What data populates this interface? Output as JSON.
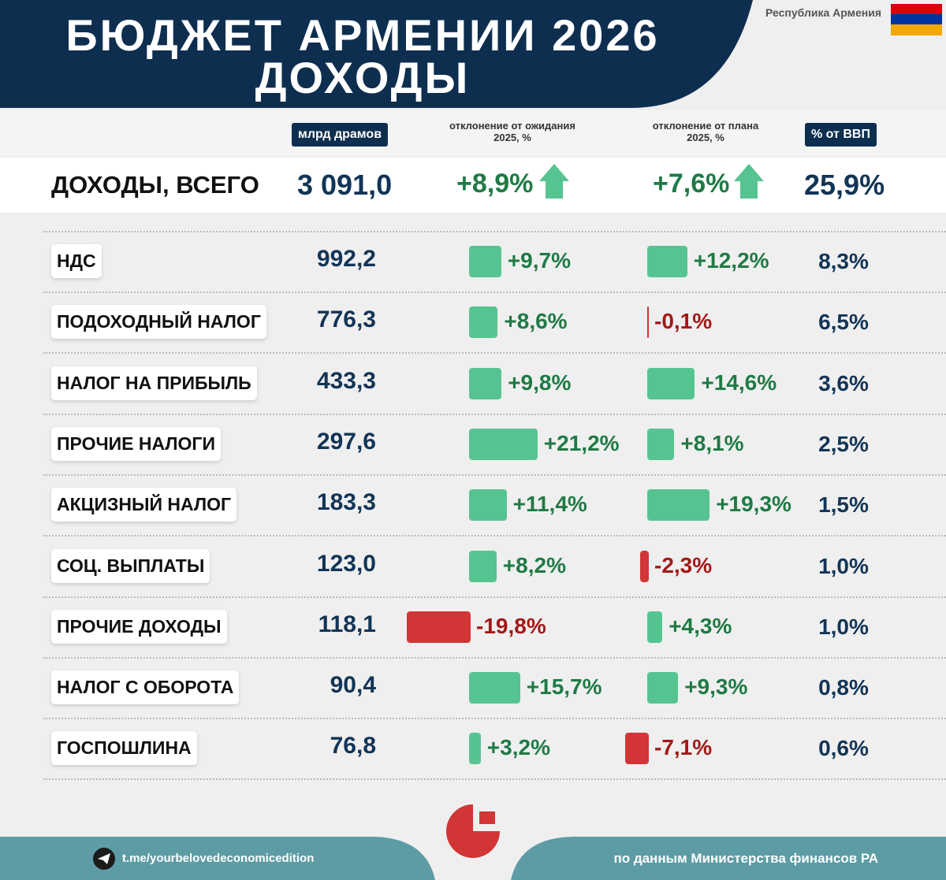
{
  "header": {
    "title_line1": "БЮДЖЕТ АРМЕНИИ 2026",
    "title_line2": "ДОХОДЫ",
    "country": "Республика Армения"
  },
  "columns": [
    "млрд драмов",
    "отклонение от ожидания 2025, %",
    "отклонение от плана 2025, %",
    "% от ВВП"
  ],
  "total": {
    "label": "ДОХОДЫ, ВСЕГО",
    "amount": "3 091,0",
    "vs_expected": {
      "value": 8.9,
      "label": "+8,9%"
    },
    "vs_plan": {
      "value": 7.6,
      "label": "+7,6%"
    },
    "gdp": "25,9%"
  },
  "rows": [
    {
      "label": "НДС",
      "amount": "992,2",
      "vs_expected": {
        "value": 9.7,
        "label": "+9,7%"
      },
      "vs_plan": {
        "value": 12.2,
        "label": "+12,2%"
      },
      "gdp": "8,3%"
    },
    {
      "label": "ПОДОХОДНЫЙ НАЛОГ",
      "amount": "776,3",
      "vs_expected": {
        "value": 8.6,
        "label": "+8,6%"
      },
      "vs_plan": {
        "value": -0.1,
        "label": "-0,1%"
      },
      "gdp": "6,5%"
    },
    {
      "label": "НАЛОГ НА ПРИБЫЛЬ",
      "amount": "433,3",
      "vs_expected": {
        "value": 9.8,
        "label": "+9,8%"
      },
      "vs_plan": {
        "value": 14.6,
        "label": "+14,6%"
      },
      "gdp": "3,6%"
    },
    {
      "label": "ПРОЧИЕ НАЛОГИ",
      "amount": "297,6",
      "vs_expected": {
        "value": 21.2,
        "label": "+21,2%"
      },
      "vs_plan": {
        "value": 8.1,
        "label": "+8,1%"
      },
      "gdp": "2,5%"
    },
    {
      "label": "АКЦИЗНЫЙ НАЛОГ",
      "amount": "183,3",
      "vs_expected": {
        "value": 11.4,
        "label": "+11,4%"
      },
      "vs_plan": {
        "value": 19.3,
        "label": "+19,3%"
      },
      "gdp": "1,5%"
    },
    {
      "label": "СОЦ. ВЫПЛАТЫ",
      "amount": "123,0",
      "vs_expected": {
        "value": 8.2,
        "label": "+8,2%"
      },
      "vs_plan": {
        "value": -2.3,
        "label": "-2,3%"
      },
      "gdp": "1,0%"
    },
    {
      "label": "ПРОЧИЕ ДОХОДЫ",
      "amount": "118,1",
      "vs_expected": {
        "value": -19.8,
        "label": "-19,8%"
      },
      "vs_plan": {
        "value": 4.3,
        "label": "+4,3%"
      },
      "gdp": "1,0%"
    },
    {
      "label": "НАЛОГ С ОБОРОТА",
      "amount": "90,4",
      "vs_expected": {
        "value": 15.7,
        "label": "+15,7%"
      },
      "vs_plan": {
        "value": 9.3,
        "label": "+9,3%"
      },
      "gdp": "0,8%"
    },
    {
      "label": "ГОСПОШЛИНА",
      "amount": "76,8",
      "vs_expected": {
        "value": 3.2,
        "label": "+3,2%"
      },
      "vs_plan": {
        "value": -7.1,
        "label": "-7,1%"
      },
      "gdp": "0,6%"
    }
  ],
  "footer": {
    "link": "t.me/yourbelovedeconomicedition",
    "source": "по данным Министерства финансов РА"
  }
}
